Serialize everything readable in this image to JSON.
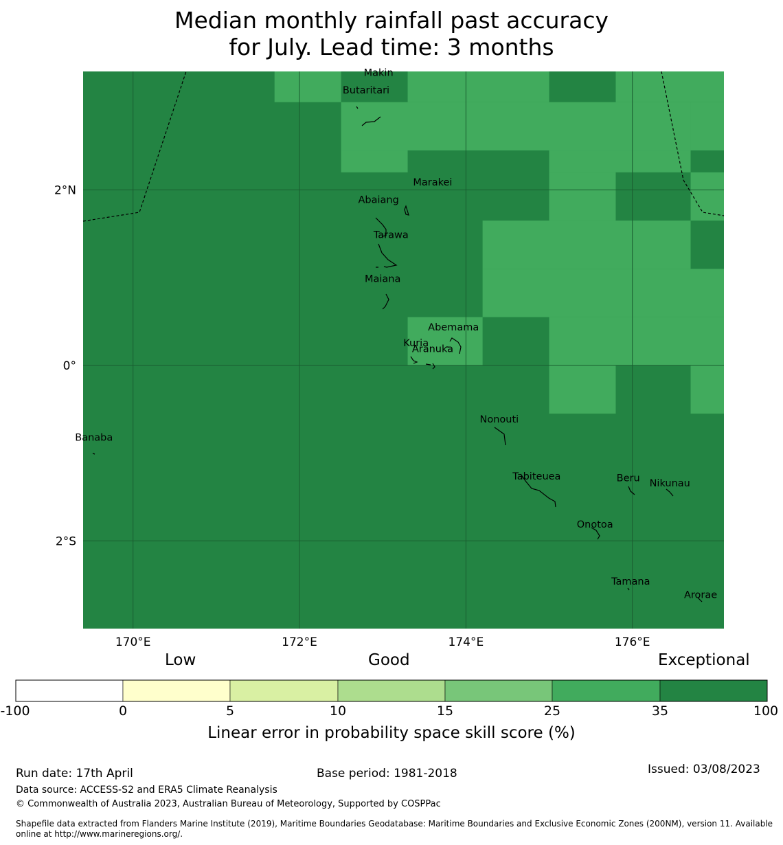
{
  "title_line1": "Median monthly rainfall past accuracy",
  "title_line2": "for July. Lead time: 3 months",
  "map": {
    "lon_range": [
      169.4,
      177.1
    ],
    "lat_range": [
      -3.0,
      3.35
    ],
    "lon_ticks": [
      {
        "value": 170,
        "label": "170°E"
      },
      {
        "value": 172,
        "label": "172°E"
      },
      {
        "value": 174,
        "label": "174°E"
      },
      {
        "value": 176,
        "label": "176°E"
      }
    ],
    "lat_ticks": [
      {
        "value": 2,
        "label": "2°N"
      },
      {
        "value": 0,
        "label": "0°"
      },
      {
        "value": -2,
        "label": "2°S"
      }
    ],
    "background_category": "35 to 100",
    "grid_cells_35_to_25": [
      {
        "lon": [
          171.7,
          172.5
        ],
        "lat": [
          3.0,
          3.35
        ]
      },
      {
        "lon": [
          173.3,
          175.0
        ],
        "lat": [
          3.0,
          3.35
        ]
      },
      {
        "lon": [
          175.8,
          177.1
        ],
        "lat": [
          3.0,
          3.35
        ]
      },
      {
        "lon": [
          172.5,
          176.7
        ],
        "lat": [
          2.45,
          3.0
        ]
      },
      {
        "lon": [
          176.7,
          177.1
        ],
        "lat": [
          2.45,
          3.0
        ]
      },
      {
        "lon": [
          172.5,
          173.3
        ],
        "lat": [
          2.2,
          2.45
        ]
      },
      {
        "lon": [
          175.0,
          176.7
        ],
        "lat": [
          2.2,
          2.45
        ]
      },
      {
        "lon": [
          175.0,
          175.8
        ],
        "lat": [
          1.65,
          2.2
        ]
      },
      {
        "lon": [
          176.7,
          177.1
        ],
        "lat": [
          1.65,
          2.2
        ]
      },
      {
        "lon": [
          174.2,
          176.7
        ],
        "lat": [
          1.1,
          1.65
        ]
      },
      {
        "lon": [
          174.2,
          177.1
        ],
        "lat": [
          0.55,
          1.1
        ]
      },
      {
        "lon": [
          173.3,
          174.2
        ],
        "lat": [
          0.0,
          0.55
        ]
      },
      {
        "lon": [
          175.0,
          177.1
        ],
        "lat": [
          0.0,
          0.55
        ]
      },
      {
        "lon": [
          175.0,
          175.8
        ],
        "lat": [
          -0.55,
          0.0
        ]
      },
      {
        "lon": [
          176.7,
          177.1
        ],
        "lat": [
          -0.55,
          0.0
        ]
      }
    ],
    "islands": [
      {
        "name": "Makin",
        "lon": 172.95,
        "lat": 3.3
      },
      {
        "name": "Butaritari",
        "lon": 172.8,
        "lat": 3.1
      },
      {
        "name": "Marakei",
        "lon": 173.6,
        "lat": 2.05
      },
      {
        "name": "Abaiang",
        "lon": 172.95,
        "lat": 1.85
      },
      {
        "name": "Tarawa",
        "lon": 173.1,
        "lat": 1.45
      },
      {
        "name": "Maiana",
        "lon": 173.0,
        "lat": 0.95
      },
      {
        "name": "Abemama",
        "lon": 173.85,
        "lat": 0.4
      },
      {
        "name": "Kuria",
        "lon": 173.4,
        "lat": 0.22
      },
      {
        "name": "Aranuka",
        "lon": 173.6,
        "lat": 0.15
      },
      {
        "name": "Banaba",
        "lon": 169.53,
        "lat": -0.86
      },
      {
        "name": "Nonouti",
        "lon": 174.4,
        "lat": -0.65
      },
      {
        "name": "Tabiteuea",
        "lon": 174.85,
        "lat": -1.3
      },
      {
        "name": "Beru",
        "lon": 175.95,
        "lat": -1.32
      },
      {
        "name": "Nikunau",
        "lon": 176.45,
        "lat": -1.38
      },
      {
        "name": "Onotoa",
        "lon": 175.55,
        "lat": -1.85
      },
      {
        "name": "Tamana",
        "lon": 175.98,
        "lat": -2.5
      },
      {
        "name": "Arorae",
        "lon": 176.82,
        "lat": -2.65
      }
    ]
  },
  "colorbar": {
    "categories": [
      "Low",
      "Good",
      "Exceptional"
    ],
    "bins": [
      {
        "from": -100,
        "to": 0,
        "color": "#ffffff"
      },
      {
        "from": 0,
        "to": 5,
        "color": "#ffffcc"
      },
      {
        "from": 5,
        "to": 10,
        "color": "#d9f0a3"
      },
      {
        "from": 10,
        "to": 15,
        "color": "#addd8e"
      },
      {
        "from": 15,
        "to": 25,
        "color": "#78c679"
      },
      {
        "from": 25,
        "to": 35,
        "color": "#41ab5d"
      },
      {
        "from": 35,
        "to": 100,
        "color": "#238443"
      }
    ],
    "tick_labels": [
      "-100",
      "0",
      "5",
      "10",
      "15",
      "25",
      "35",
      "100"
    ],
    "label": "Linear error in probability space skill score (%)"
  },
  "footer": {
    "run_date": "Run date: 17th April",
    "base_period": "Base period: 1981-2018",
    "issued": "Issued: 03/08/2023",
    "data_source": "Data source: ACCESS-S2 and ERA5 Climate Reanalysis",
    "copyright": "© Commonwealth of Australia 2023, Australian Bureau of Meteorology, Supported by COSPPac",
    "shapefile_line1": "Shapefile data extracted from Flanders Marine Institute (2019), Maritime Boundaries Geodatabase: Maritime Boundaries and Exclusive Economic Zones (200NM), version 11. Available",
    "shapefile_line2": "online at http://www.marineregions.org/."
  }
}
